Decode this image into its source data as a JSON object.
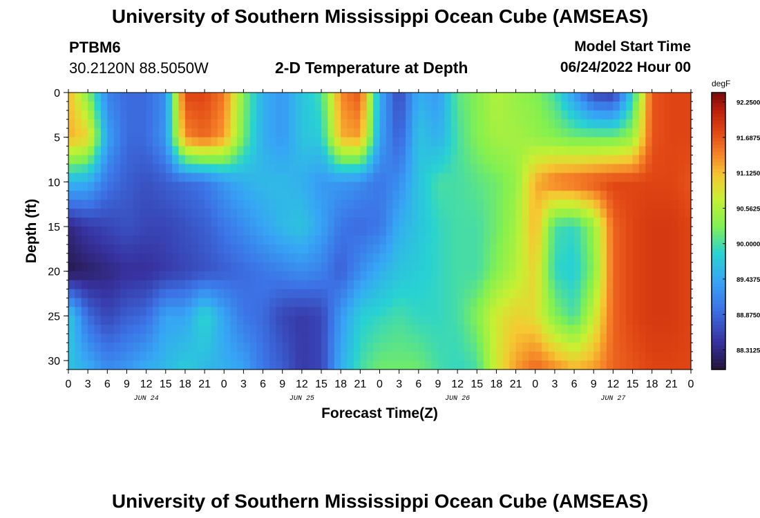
{
  "title_top": "University of Southern Mississippi Ocean Cube (AMSEAS)",
  "title_bottom": "University of Southern Mississippi Ocean Cube (AMSEAS)",
  "station": {
    "id": "PTBM6",
    "coords": "30.2120N  88.5050W"
  },
  "plot_title": "2-D Temperature at Depth",
  "model_start": {
    "label": "Model Start Time",
    "value": "06/24/2022 Hour 00"
  },
  "colorbar": {
    "unit": "degF",
    "ticks": [
      "92.2500",
      "91.6875",
      "91.1250",
      "90.5625",
      "90.0000",
      "89.4375",
      "88.8750",
      "88.3125"
    ],
    "tick_values": [
      92.25,
      91.6875,
      91.125,
      90.5625,
      90.0,
      89.4375,
      88.875,
      88.3125
    ],
    "range": [
      88.0,
      92.4
    ]
  },
  "chart_data": {
    "type": "heatmap",
    "xlabel": "Forecast Time(Z)",
    "ylabel": "Depth (ft)",
    "x_range_hours": [
      0,
      96
    ],
    "y_range_ft": [
      0,
      31
    ],
    "x_tick_labels": [
      "0",
      "3",
      "6",
      "9",
      "12",
      "15",
      "18",
      "21",
      "0",
      "3",
      "6",
      "9",
      "12",
      "15",
      "18",
      "21",
      "0",
      "3",
      "6",
      "9",
      "12",
      "15",
      "18",
      "21",
      "0",
      "3",
      "6",
      "9",
      "12",
      "15",
      "18",
      "21",
      "0"
    ],
    "x_tick_hours": [
      0,
      3,
      6,
      9,
      12,
      15,
      18,
      21,
      24,
      27,
      30,
      33,
      36,
      39,
      42,
      45,
      48,
      51,
      54,
      57,
      60,
      63,
      66,
      69,
      72,
      75,
      78,
      81,
      84,
      87,
      90,
      93,
      96
    ],
    "date_labels": [
      {
        "text": "JUN 24",
        "hour": 12
      },
      {
        "text": "JUN 25",
        "hour": 36
      },
      {
        "text": "JUN 26",
        "hour": 60
      },
      {
        "text": "JUN 27",
        "hour": 84
      }
    ],
    "y_tick_labels": [
      "0",
      "5",
      "10",
      "15",
      "20",
      "25",
      "30"
    ],
    "y_tick_values": [
      0,
      5,
      10,
      15,
      20,
      25,
      30
    ],
    "z_unit": "degF",
    "grid_x_hours": [
      0,
      3,
      6,
      9,
      12,
      15,
      18,
      21,
      24,
      27,
      30,
      33,
      36,
      39,
      42,
      45,
      48,
      51,
      54,
      57,
      60,
      63,
      66,
      69,
      72,
      75,
      78,
      81,
      84,
      87,
      90,
      93,
      96
    ],
    "grid_y_ft": [
      0,
      5,
      10,
      15,
      20,
      25,
      31
    ],
    "values_degF": [
      [
        91.2,
        90.3,
        89.1,
        88.9,
        88.9,
        89.2,
        91.8,
        91.8,
        91.5,
        90.3,
        89.5,
        89.3,
        89.7,
        90.0,
        91.4,
        91.7,
        89.5,
        88.6,
        89.5,
        89.3,
        90.1,
        90.3,
        90.6,
        90.4,
        90.3,
        90.0,
        89.3,
        88.6,
        88.5,
        89.8,
        91.7,
        91.8,
        91.8
      ],
      [
        91.2,
        91.0,
        89.4,
        88.9,
        88.9,
        89.3,
        91.4,
        91.6,
        91.3,
        90.2,
        89.5,
        89.3,
        89.7,
        89.8,
        91.2,
        91.3,
        89.4,
        88.8,
        89.7,
        89.5,
        90.0,
        90.3,
        90.5,
        90.5,
        90.4,
        90.3,
        90.2,
        90.2,
        90.2,
        90.4,
        91.7,
        91.8,
        91.8
      ],
      [
        89.6,
        89.5,
        89.0,
        88.8,
        88.7,
        88.8,
        88.9,
        89.0,
        89.3,
        89.5,
        89.6,
        89.6,
        89.5,
        89.3,
        89.3,
        89.2,
        89.0,
        89.2,
        89.7,
        90.0,
        90.0,
        90.1,
        90.2,
        90.4,
        91.2,
        91.5,
        91.6,
        91.7,
        91.8,
        91.8,
        91.8,
        91.8,
        91.7
      ],
      [
        88.3,
        88.5,
        88.6,
        88.7,
        88.6,
        88.6,
        88.7,
        88.8,
        89.0,
        89.2,
        89.4,
        89.6,
        89.7,
        89.4,
        89.0,
        88.9,
        89.0,
        89.5,
        89.7,
        89.9,
        90.0,
        90.0,
        90.2,
        90.5,
        91.2,
        90.0,
        89.9,
        90.4,
        91.6,
        91.8,
        91.9,
        91.9,
        91.8
      ],
      [
        88.1,
        88.2,
        88.3,
        88.4,
        88.4,
        88.5,
        88.6,
        88.7,
        88.8,
        88.9,
        89.0,
        89.1,
        89.2,
        89.1,
        88.8,
        89.2,
        89.5,
        89.7,
        89.8,
        89.9,
        90.0,
        90.0,
        90.3,
        90.6,
        91.0,
        89.9,
        89.8,
        90.3,
        91.6,
        91.8,
        91.9,
        91.9,
        91.8
      ],
      [
        89.8,
        88.9,
        88.6,
        88.8,
        88.9,
        89.4,
        89.4,
        89.9,
        89.4,
        89.0,
        88.9,
        88.6,
        88.5,
        88.6,
        89.3,
        89.8,
        89.9,
        90.0,
        89.9,
        89.9,
        90.0,
        90.3,
        90.8,
        91.0,
        90.9,
        90.3,
        90.0,
        90.7,
        91.6,
        91.8,
        91.9,
        91.9,
        91.8
      ],
      [
        89.7,
        89.5,
        89.2,
        89.3,
        89.5,
        89.6,
        89.8,
        89.6,
        89.5,
        89.4,
        89.0,
        88.8,
        88.5,
        88.6,
        89.5,
        90.0,
        90.2,
        90.2,
        90.2,
        90.0,
        89.9,
        90.0,
        90.8,
        91.3,
        91.6,
        91.4,
        91.2,
        91.3,
        91.6,
        91.7,
        91.8,
        91.8,
        91.8
      ]
    ]
  }
}
